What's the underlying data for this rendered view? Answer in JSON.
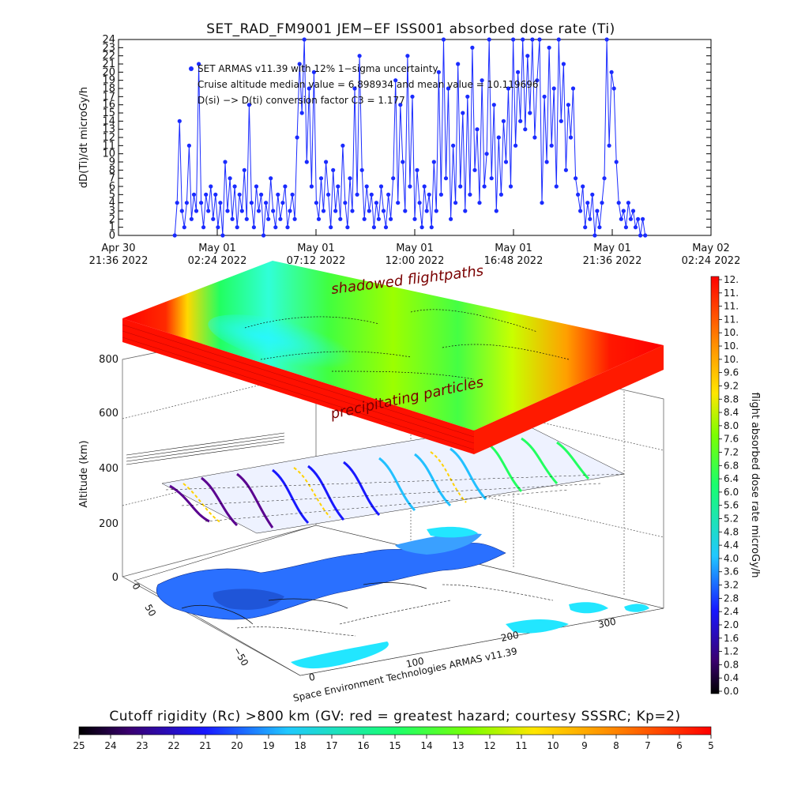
{
  "top_panel": {
    "title": "SET_RAD_FM9001  JEM−EF ISS001 absorbed dose rate (Ti)",
    "ylabel": "dD(Ti)/dt microGy/h",
    "annotations": [
      "SET ARMAS v11.39 with 12% 1−sigma uncertainty",
      "Cruise altitude median value = 6.898934 and mean value = 10.119696",
      "D(si) −> D(ti) conversion factor C3 = 1.177"
    ],
    "x_ticks": [
      {
        "l1": "Apr 30",
        "l2": "21:36 2022"
      },
      {
        "l1": "May 01",
        "l2": "02:24 2022"
      },
      {
        "l1": "May 01",
        "l2": "07:12 2022"
      },
      {
        "l1": "May 01",
        "l2": "12:00 2022"
      },
      {
        "l1": "May 01",
        "l2": "16:48 2022"
      },
      {
        "l1": "May 01",
        "l2": "21:36 2022"
      },
      {
        "l1": "May 02",
        "l2": "02:24 2022"
      }
    ],
    "y_ticks": [
      "0",
      "1",
      "2",
      "3",
      "4",
      "5",
      "6",
      "7",
      "8",
      "9",
      "10",
      "11",
      "12",
      "13",
      "14",
      "15",
      "16",
      "17",
      "18",
      "19",
      "20",
      "21",
      "22",
      "23",
      "24"
    ]
  },
  "chart_data": {
    "type": "line",
    "title": "SET_RAD_FM9001  JEM−EF ISS001 absorbed dose rate (Ti)",
    "xlabel": "",
    "ylabel": "dD(Ti)/dt microGy/h",
    "xlim": [
      "Apr 30 21:36 2022",
      "May 02 02:24 2022"
    ],
    "ylim": [
      0,
      24
    ],
    "series": [
      {
        "values": [
          {
            "x": "2022-05-01T00:20",
            "y": 0
          },
          {
            "x": "2022-05-01T00:27",
            "y": 4
          },
          {
            "x": "2022-05-01T00:34",
            "y": 14
          },
          {
            "x": "2022-05-01T00:41",
            "y": 3
          },
          {
            "x": "2022-05-01T00:48",
            "y": 1
          },
          {
            "x": "2022-05-01T00:55",
            "y": 4
          },
          {
            "x": "2022-05-01T01:02",
            "y": 11
          },
          {
            "x": "2022-05-01T01:09",
            "y": 2
          },
          {
            "x": "2022-05-01T01:16",
            "y": 5
          },
          {
            "x": "2022-05-01T01:23",
            "y": 3
          },
          {
            "x": "2022-05-01T01:30",
            "y": 21
          },
          {
            "x": "2022-05-01T01:37",
            "y": 4
          },
          {
            "x": "2022-05-01T01:44",
            "y": 1
          },
          {
            "x": "2022-05-01T01:51",
            "y": 5
          },
          {
            "x": "2022-05-01T01:58",
            "y": 3
          },
          {
            "x": "2022-05-01T02:05",
            "y": 6
          },
          {
            "x": "2022-05-01T02:12",
            "y": 2
          },
          {
            "x": "2022-05-01T02:19",
            "y": 5
          },
          {
            "x": "2022-05-01T02:26",
            "y": 1
          },
          {
            "x": "2022-05-01T02:33",
            "y": 4
          },
          {
            "x": "2022-05-01T02:40",
            "y": 0
          },
          {
            "x": "2022-05-01T02:47",
            "y": 9
          },
          {
            "x": "2022-05-01T02:54",
            "y": 3
          },
          {
            "x": "2022-05-01T03:01",
            "y": 7
          },
          {
            "x": "2022-05-01T03:08",
            "y": 2
          },
          {
            "x": "2022-05-01T03:15",
            "y": 6
          },
          {
            "x": "2022-05-01T03:22",
            "y": 1
          },
          {
            "x": "2022-05-01T03:29",
            "y": 5
          },
          {
            "x": "2022-05-01T03:36",
            "y": 3
          },
          {
            "x": "2022-05-01T03:43",
            "y": 8
          },
          {
            "x": "2022-05-01T03:50",
            "y": 2
          },
          {
            "x": "2022-05-01T03:57",
            "y": 16
          },
          {
            "x": "2022-05-01T04:04",
            "y": 4
          },
          {
            "x": "2022-05-01T04:11",
            "y": 1
          },
          {
            "x": "2022-05-01T04:18",
            "y": 6
          },
          {
            "x": "2022-05-01T04:25",
            "y": 3
          },
          {
            "x": "2022-05-01T04:32",
            "y": 5
          },
          {
            "x": "2022-05-01T04:39",
            "y": 0
          },
          {
            "x": "2022-05-01T04:46",
            "y": 4
          },
          {
            "x": "2022-05-01T04:53",
            "y": 2
          },
          {
            "x": "2022-05-01T05:00",
            "y": 7
          },
          {
            "x": "2022-05-01T05:07",
            "y": 3
          },
          {
            "x": "2022-05-01T05:14",
            "y": 1
          },
          {
            "x": "2022-05-01T05:21",
            "y": 5
          },
          {
            "x": "2022-05-01T05:28",
            "y": 2
          },
          {
            "x": "2022-05-01T05:35",
            "y": 4
          },
          {
            "x": "2022-05-01T05:42",
            "y": 6
          },
          {
            "x": "2022-05-01T05:49",
            "y": 1
          },
          {
            "x": "2022-05-01T05:56",
            "y": 3
          },
          {
            "x": "2022-05-01T06:03",
            "y": 5
          },
          {
            "x": "2022-05-01T06:10",
            "y": 2
          },
          {
            "x": "2022-05-01T06:17",
            "y": 12
          },
          {
            "x": "2022-05-01T06:24",
            "y": 21
          },
          {
            "x": "2022-05-01T06:31",
            "y": 15
          },
          {
            "x": "2022-05-01T06:38",
            "y": 24
          },
          {
            "x": "2022-05-01T06:45",
            "y": 9
          },
          {
            "x": "2022-05-01T06:52",
            "y": 18
          },
          {
            "x": "2022-05-01T06:59",
            "y": 6
          },
          {
            "x": "2022-05-01T07:06",
            "y": 20
          },
          {
            "x": "2022-05-01T07:13",
            "y": 4
          },
          {
            "x": "2022-05-01T07:20",
            "y": 2
          },
          {
            "x": "2022-05-01T07:27",
            "y": 7
          },
          {
            "x": "2022-05-01T07:34",
            "y": 3
          },
          {
            "x": "2022-05-01T07:41",
            "y": 9
          },
          {
            "x": "2022-05-01T07:48",
            "y": 5
          },
          {
            "x": "2022-05-01T07:55",
            "y": 1
          },
          {
            "x": "2022-05-01T08:02",
            "y": 8
          },
          {
            "x": "2022-05-01T08:09",
            "y": 3
          },
          {
            "x": "2022-05-01T08:16",
            "y": 6
          },
          {
            "x": "2022-05-01T08:23",
            "y": 2
          },
          {
            "x": "2022-05-01T08:30",
            "y": 11
          },
          {
            "x": "2022-05-01T08:37",
            "y": 4
          },
          {
            "x": "2022-05-01T08:44",
            "y": 1
          },
          {
            "x": "2022-05-01T08:51",
            "y": 7
          },
          {
            "x": "2022-05-01T08:58",
            "y": 3
          },
          {
            "x": "2022-05-01T09:05",
            "y": 18
          },
          {
            "x": "2022-05-01T09:12",
            "y": 5
          },
          {
            "x": "2022-05-01T09:19",
            "y": 22
          },
          {
            "x": "2022-05-01T09:26",
            "y": 8
          },
          {
            "x": "2022-05-01T09:33",
            "y": 2
          },
          {
            "x": "2022-05-01T09:40",
            "y": 6
          },
          {
            "x": "2022-05-01T09:47",
            "y": 3
          },
          {
            "x": "2022-05-01T09:54",
            "y": 5
          },
          {
            "x": "2022-05-01T10:01",
            "y": 1
          },
          {
            "x": "2022-05-01T10:08",
            "y": 4
          },
          {
            "x": "2022-05-01T10:15",
            "y": 2
          },
          {
            "x": "2022-05-01T10:22",
            "y": 6
          },
          {
            "x": "2022-05-01T10:29",
            "y": 3
          },
          {
            "x": "2022-05-01T10:36",
            "y": 1
          },
          {
            "x": "2022-05-01T10:43",
            "y": 5
          },
          {
            "x": "2022-05-01T10:50",
            "y": 2
          },
          {
            "x": "2022-05-01T10:57",
            "y": 7
          },
          {
            "x": "2022-05-01T11:04",
            "y": 19
          },
          {
            "x": "2022-05-01T11:11",
            "y": 4
          },
          {
            "x": "2022-05-01T11:18",
            "y": 16
          },
          {
            "x": "2022-05-01T11:25",
            "y": 9
          },
          {
            "x": "2022-05-01T11:32",
            "y": 3
          },
          {
            "x": "2022-05-01T11:39",
            "y": 22
          },
          {
            "x": "2022-05-01T11:46",
            "y": 6
          },
          {
            "x": "2022-05-01T11:53",
            "y": 17
          },
          {
            "x": "2022-05-01T12:00",
            "y": 2
          },
          {
            "x": "2022-05-01T12:07",
            "y": 8
          },
          {
            "x": "2022-05-01T12:14",
            "y": 4
          },
          {
            "x": "2022-05-01T12:21",
            "y": 1
          },
          {
            "x": "2022-05-01T12:28",
            "y": 6
          },
          {
            "x": "2022-05-01T12:35",
            "y": 3
          },
          {
            "x": "2022-05-01T12:42",
            "y": 5
          },
          {
            "x": "2022-05-01T12:49",
            "y": 1
          },
          {
            "x": "2022-05-01T12:56",
            "y": 9
          },
          {
            "x": "2022-05-01T13:03",
            "y": 3
          },
          {
            "x": "2022-05-01T13:10",
            "y": 20
          },
          {
            "x": "2022-05-01T13:17",
            "y": 5
          },
          {
            "x": "2022-05-01T13:24",
            "y": 24
          },
          {
            "x": "2022-05-01T13:31",
            "y": 7
          },
          {
            "x": "2022-05-01T13:38",
            "y": 18
          },
          {
            "x": "2022-05-01T13:45",
            "y": 2
          },
          {
            "x": "2022-05-01T13:52",
            "y": 11
          },
          {
            "x": "2022-05-01T13:59",
            "y": 4
          },
          {
            "x": "2022-05-01T14:06",
            "y": 21
          },
          {
            "x": "2022-05-01T14:13",
            "y": 6
          },
          {
            "x": "2022-05-01T14:20",
            "y": 15
          },
          {
            "x": "2022-05-01T14:27",
            "y": 3
          },
          {
            "x": "2022-05-01T14:34",
            "y": 17
          },
          {
            "x": "2022-05-01T14:41",
            "y": 5
          },
          {
            "x": "2022-05-01T14:48",
            "y": 23
          },
          {
            "x": "2022-05-01T14:55",
            "y": 8
          },
          {
            "x": "2022-05-01T15:02",
            "y": 13
          },
          {
            "x": "2022-05-01T15:09",
            "y": 4
          },
          {
            "x": "2022-05-01T15:16",
            "y": 19
          },
          {
            "x": "2022-05-01T15:23",
            "y": 6
          },
          {
            "x": "2022-05-01T15:30",
            "y": 10
          },
          {
            "x": "2022-05-01T15:37",
            "y": 24
          },
          {
            "x": "2022-05-01T15:44",
            "y": 7
          },
          {
            "x": "2022-05-01T15:51",
            "y": 16
          },
          {
            "x": "2022-05-01T15:58",
            "y": 3
          },
          {
            "x": "2022-05-01T16:05",
            "y": 12
          },
          {
            "x": "2022-05-01T16:12",
            "y": 5
          },
          {
            "x": "2022-05-01T16:19",
            "y": 14
          },
          {
            "x": "2022-05-01T16:26",
            "y": 9
          },
          {
            "x": "2022-05-01T16:33",
            "y": 18
          },
          {
            "x": "2022-05-01T16:40",
            "y": 6
          },
          {
            "x": "2022-05-01T16:47",
            "y": 24
          },
          {
            "x": "2022-05-01T16:54",
            "y": 11
          },
          {
            "x": "2022-05-01T17:01",
            "y": 20
          },
          {
            "x": "2022-05-01T17:08",
            "y": 14
          },
          {
            "x": "2022-05-01T17:15",
            "y": 24
          },
          {
            "x": "2022-05-01T17:22",
            "y": 13
          },
          {
            "x": "2022-05-01T17:29",
            "y": 22
          },
          {
            "x": "2022-05-01T17:36",
            "y": 15
          },
          {
            "x": "2022-05-01T17:43",
            "y": 24
          },
          {
            "x": "2022-05-01T17:50",
            "y": 12
          },
          {
            "x": "2022-05-01T17:57",
            "y": 19
          },
          {
            "x": "2022-05-01T18:04",
            "y": 24
          },
          {
            "x": "2022-05-01T18:11",
            "y": 4
          },
          {
            "x": "2022-05-01T18:18",
            "y": 17
          },
          {
            "x": "2022-05-01T18:25",
            "y": 9
          },
          {
            "x": "2022-05-01T18:32",
            "y": 23
          },
          {
            "x": "2022-05-01T18:39",
            "y": 11
          },
          {
            "x": "2022-05-01T18:46",
            "y": 18
          },
          {
            "x": "2022-05-01T18:53",
            "y": 6
          },
          {
            "x": "2022-05-01T19:00",
            "y": 24
          },
          {
            "x": "2022-05-01T19:07",
            "y": 14
          },
          {
            "x": "2022-05-01T19:14",
            "y": 21
          },
          {
            "x": "2022-05-01T19:21",
            "y": 8
          },
          {
            "x": "2022-05-01T19:28",
            "y": 16
          },
          {
            "x": "2022-05-01T19:35",
            "y": 12
          },
          {
            "x": "2022-05-01T19:42",
            "y": 18
          },
          {
            "x": "2022-05-01T19:49",
            "y": 7
          },
          {
            "x": "2022-05-01T19:56",
            "y": 5
          },
          {
            "x": "2022-05-01T20:03",
            "y": 3
          },
          {
            "x": "2022-05-01T20:10",
            "y": 6
          },
          {
            "x": "2022-05-01T20:17",
            "y": 1
          },
          {
            "x": "2022-05-01T20:24",
            "y": 4
          },
          {
            "x": "2022-05-01T20:31",
            "y": 2
          },
          {
            "x": "2022-05-01T20:38",
            "y": 5
          },
          {
            "x": "2022-05-01T20:45",
            "y": 0
          },
          {
            "x": "2022-05-01T20:52",
            "y": 3
          },
          {
            "x": "2022-05-01T20:59",
            "y": 1
          },
          {
            "x": "2022-05-01T21:06",
            "y": 4
          },
          {
            "x": "2022-05-01T21:13",
            "y": 7
          },
          {
            "x": "2022-05-01T21:20",
            "y": 24
          },
          {
            "x": "2022-05-01T21:27",
            "y": 11
          },
          {
            "x": "2022-05-01T21:34",
            "y": 20
          },
          {
            "x": "2022-05-01T21:41",
            "y": 18
          },
          {
            "x": "2022-05-01T21:48",
            "y": 9
          },
          {
            "x": "2022-05-01T21:55",
            "y": 4
          },
          {
            "x": "2022-05-01T22:02",
            "y": 2
          },
          {
            "x": "2022-05-01T22:09",
            "y": 3
          },
          {
            "x": "2022-05-01T22:16",
            "y": 1
          },
          {
            "x": "2022-05-01T22:23",
            "y": 4
          },
          {
            "x": "2022-05-01T22:30",
            "y": 2
          },
          {
            "x": "2022-05-01T22:37",
            "y": 3
          },
          {
            "x": "2022-05-01T22:44",
            "y": 1
          },
          {
            "x": "2022-05-01T22:51",
            "y": 2
          },
          {
            "x": "2022-05-01T22:58",
            "y": 0
          },
          {
            "x": "2022-05-01T23:05",
            "y": 2
          },
          {
            "x": "2022-05-01T23:12",
            "y": 0
          }
        ]
      }
    ]
  },
  "scene": {
    "z_label": "Altitude (km)",
    "z_ticks": [
      "0",
      "200",
      "400",
      "600",
      "800"
    ],
    "y_ticks": [
      "0",
      "50",
      "−50"
    ],
    "x_ticks": [
      "0",
      "100",
      "200",
      "300"
    ],
    "overlay_top": "shadowed flightpaths",
    "overlay_mid": "precipitating particles",
    "credit": "Space Environment Technologies ARMAS v11.39"
  },
  "right_colorbar": {
    "label": "flight absorbed dose rate microGy/h",
    "ticks": [
      "12.",
      "11.",
      "11.",
      "11.",
      "10.",
      "10.",
      "10.",
      "9.6",
      "9.2",
      "8.8",
      "8.4",
      "8.0",
      "7.6",
      "7.2",
      "6.8",
      "6.4",
      "6.0",
      "5.6",
      "5.2",
      "4.8",
      "4.4",
      "4.0",
      "3.6",
      "3.2",
      "2.8",
      "2.4",
      "2.0",
      "1.6",
      "1.2",
      "0.8",
      "0.4",
      "0.0"
    ],
    "min": 0,
    "max": 12
  },
  "bottom_colorbar": {
    "title": "Cutoff rigidity (Rc) >800 km (GV: red = greatest hazard; courtesy SSSRC; Kp=2)",
    "ticks": [
      "25",
      "24",
      "23",
      "22",
      "21",
      "20",
      "19",
      "18",
      "17",
      "16",
      "15",
      "14",
      "13",
      "12",
      "11",
      "10",
      "9",
      "8",
      "7",
      "6",
      "5"
    ]
  },
  "colors": {
    "data_blue": "#1a2bff",
    "hazard_red": "#ff1a00",
    "frame": "#000000"
  }
}
